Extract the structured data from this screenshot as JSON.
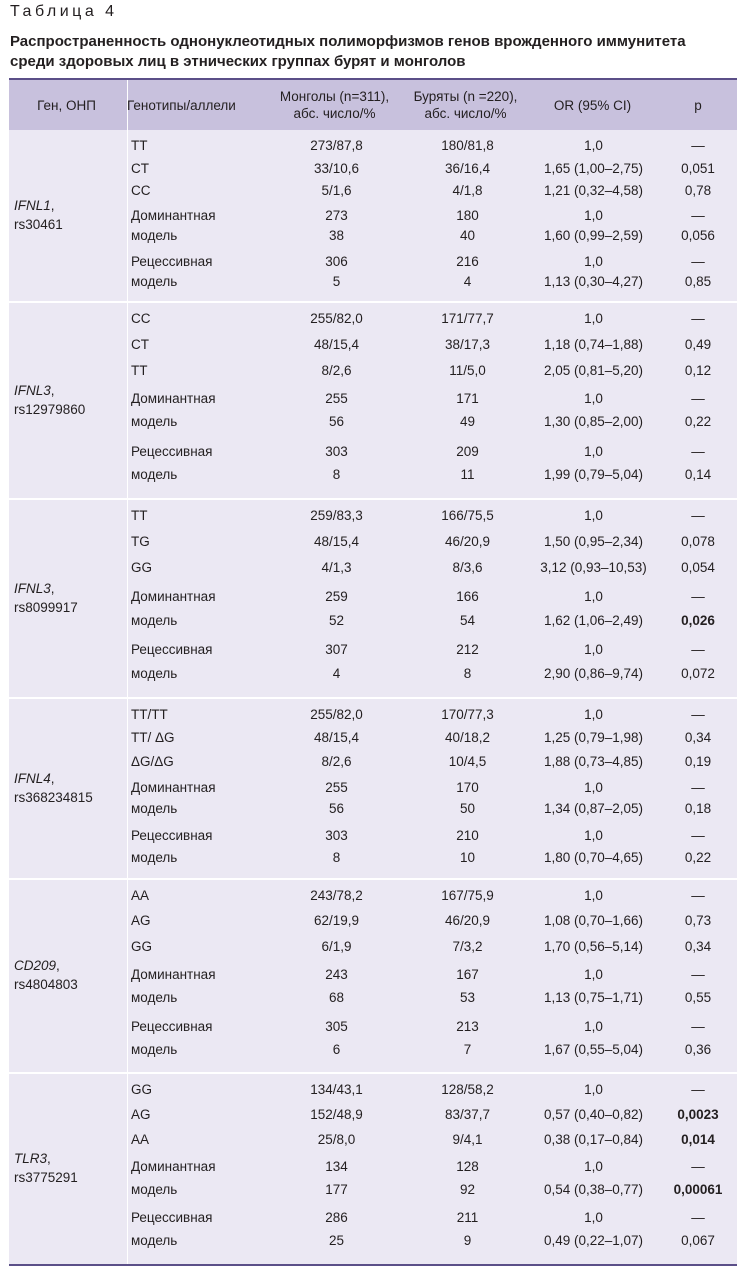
{
  "table_label": "Таблица 4",
  "title": "Распространенность однонуклеотидных полиморфизмов генов врожденного иммунитета среди здоровых лиц в этнических группах бурят и монголов",
  "headers": [
    "Ген, ОНП",
    "Генотипы/аллели",
    "Монголы (n=311), абс. число/%",
    "Буряты (n =220), абс. число/%",
    "OR (95% CI)",
    "p"
  ],
  "groups": [
    {
      "gene": "IFNL1",
      "snp": "rs30461",
      "rows": [
        [
          "TT",
          "273/87,8",
          "180/81,8",
          "1,0",
          "—"
        ],
        [
          "CT",
          "33/10,6",
          "36/16,4",
          "1,65 (1,00–2,75)",
          "0,051"
        ],
        [
          "CC",
          "5/1,6",
          "4/1,8",
          "1,21 (0,32–4,58)",
          "0,78"
        ],
        [
          "Доминантная",
          "273",
          "180",
          "1,0",
          "—"
        ],
        [
          "модель",
          "38",
          "40",
          "1,60 (0,99–2,59)",
          "0,056"
        ],
        [
          "Рецессивная",
          "306",
          "216",
          "1,0",
          "—"
        ],
        [
          "модель",
          "5",
          "4",
          "1,13 (0,30–4,27)",
          "0,85"
        ]
      ]
    },
    {
      "gene": "IFNL3",
      "snp": "rs12979860",
      "rows": [
        [
          "CC",
          "255/82,0",
          "171/77,7",
          "1,0",
          "—"
        ],
        [
          "CT",
          "48/15,4",
          "38/17,3",
          "1,18 (0,74–1,88)",
          "0,49"
        ],
        [
          "TT",
          "8/2,6",
          "11/5,0",
          "2,05 (0,81–5,20)",
          "0,12"
        ],
        [
          "Доминантная",
          "255",
          "171",
          "1,0",
          "—"
        ],
        [
          "модель",
          "56",
          "49",
          "1,30 (0,85–2,00)",
          "0,22"
        ],
        [
          "Рецессивная",
          "303",
          "209",
          "1,0",
          "—"
        ],
        [
          "модель",
          "8",
          "11",
          "1,99 (0,79–5,04)",
          "0,14"
        ]
      ]
    },
    {
      "gene": "IFNL3",
      "snp": "rs8099917",
      "rows": [
        [
          "TT",
          "259/83,3",
          "166/75,5",
          "1,0",
          "—"
        ],
        [
          "TG",
          "48/15,4",
          "46/20,9",
          "1,50 (0,95–2,34)",
          "0,078"
        ],
        [
          "GG",
          "4/1,3",
          "8/3,6",
          "3,12 (0,93–10,53)",
          "0,054"
        ],
        [
          "Доминантная",
          "259",
          "166",
          "1,0",
          "—"
        ],
        [
          "модель",
          "52",
          "54",
          "1,62 (1,06–2,49)",
          "0,026"
        ],
        [
          "Рецессивная",
          "307",
          "212",
          "1,0",
          "—"
        ],
        [
          "модель",
          "4",
          "8",
          "2,90 (0,86–9,74)",
          "0,072"
        ]
      ]
    },
    {
      "gene": "IFNL4",
      "snp": "rs368234815",
      "rows": [
        [
          "TT/TT",
          "255/82,0",
          "170/77,3",
          "1,0",
          "—"
        ],
        [
          "TT/ ΔG",
          "48/15,4",
          "40/18,2",
          "1,25 (0,79–1,98)",
          "0,34"
        ],
        [
          "ΔG/ΔG",
          "8/2,6",
          "10/4,5",
          "1,88 (0,73–4,85)",
          "0,19"
        ],
        [
          "Доминантная",
          "255",
          "170",
          "1,0",
          "—"
        ],
        [
          "модель",
          "56",
          "50",
          "1,34 (0,87–2,05)",
          "0,18"
        ],
        [
          "Рецессивная",
          "303",
          "210",
          "1,0",
          "—"
        ],
        [
          "модель",
          "8",
          "10",
          "1,80 (0,70–4,65)",
          "0,22"
        ]
      ]
    },
    {
      "gene": "CD209",
      "snp": "rs4804803",
      "rows": [
        [
          "AA",
          "243/78,2",
          "167/75,9",
          "1,0",
          "—"
        ],
        [
          "AG",
          "62/19,9",
          "46/20,9",
          "1,08 (0,70–1,66)",
          "0,73"
        ],
        [
          "GG",
          "6/1,9",
          "7/3,2",
          "1,70 (0,56–5,14)",
          "0,34"
        ],
        [
          "Доминантная",
          "243",
          "167",
          "1,0",
          "—"
        ],
        [
          "модель",
          "68",
          "53",
          "1,13 (0,75–1,71)",
          "0,55"
        ],
        [
          "Рецессивная",
          "305",
          "213",
          "1,0",
          "—"
        ],
        [
          "модель",
          "6",
          "7",
          "1,67 (0,55–5,04)",
          "0,36"
        ]
      ]
    },
    {
      "gene": "TLR3",
      "snp": "rs3775291",
      "rows": [
        [
          "GG",
          "134/43,1",
          "128/58,2",
          "1,0",
          "—"
        ],
        [
          "AG",
          "152/48,9",
          "83/37,7",
          "0,57 (0,40–0,82)",
          "0,0023"
        ],
        [
          "AA",
          "25/8,0",
          "9/4,1",
          "0,38 (0,17–0,84)",
          "0,014"
        ],
        [
          "Доминантная",
          "134",
          "128",
          "1,0",
          "—"
        ],
        [
          "модель",
          "177",
          "92",
          "0,54 (0,38–0,77)",
          "0,00061"
        ],
        [
          "Рецессивная",
          "286",
          "211",
          "1,0",
          "—"
        ],
        [
          "модель",
          "25",
          "9",
          "0,49 (0,22–1,07)",
          "0,067"
        ]
      ]
    }
  ],
  "bold_p": [
    "0,026",
    "0,0023",
    "0,014",
    "0,00061"
  ]
}
